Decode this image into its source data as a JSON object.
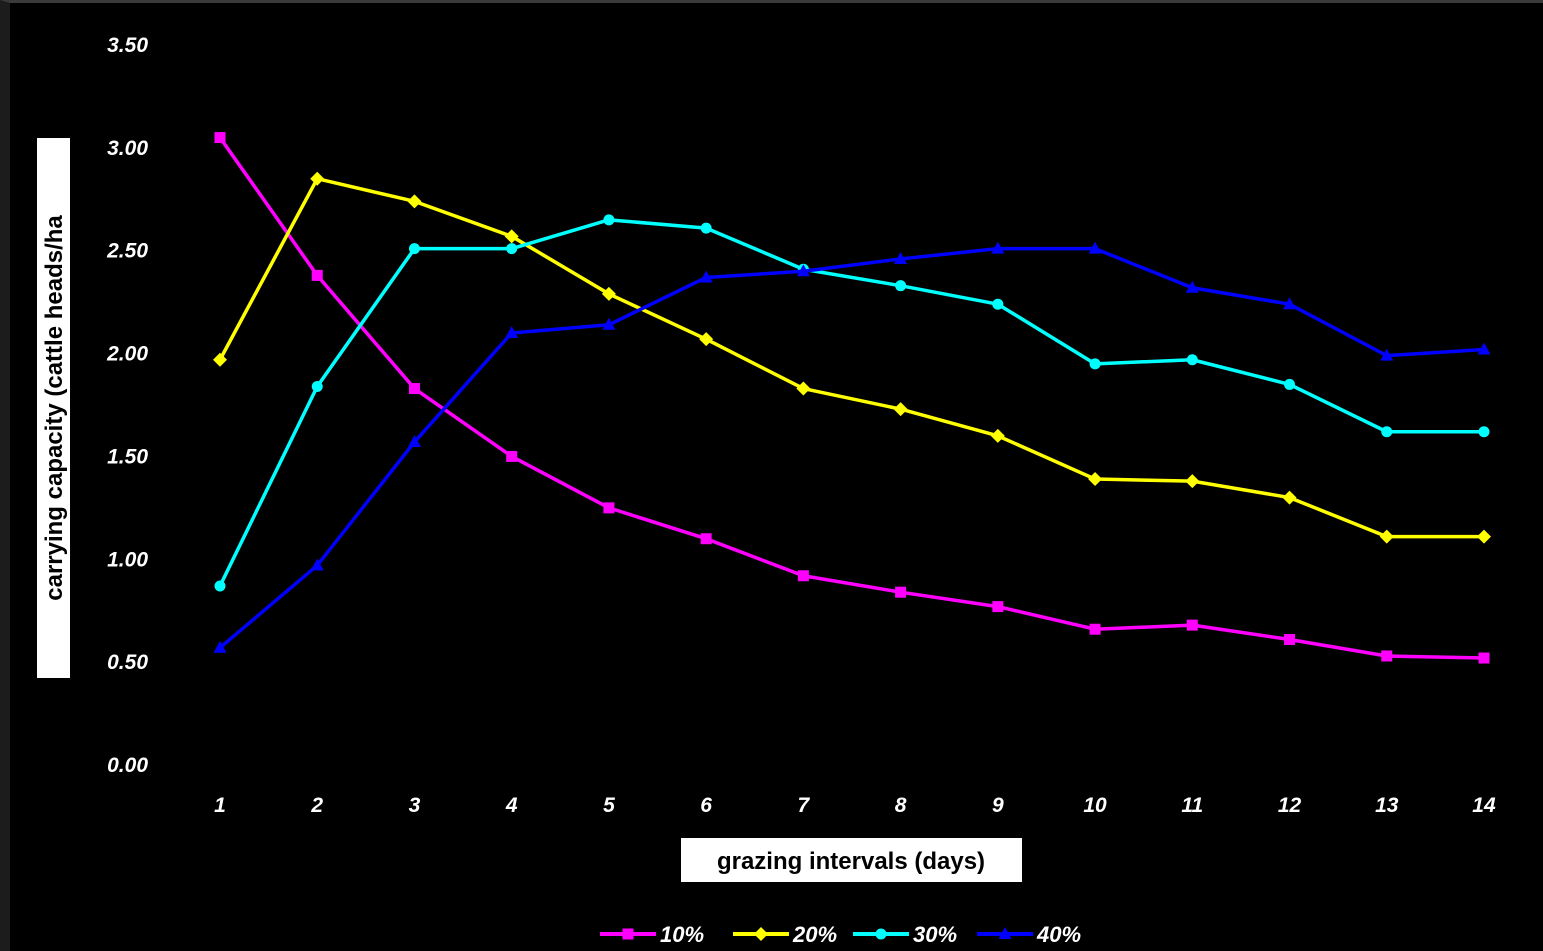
{
  "chart_data": {
    "type": "line",
    "xlabel": "grazing intervals (days)",
    "ylabel": "carrying capacity (cattle heads/ha",
    "categories": [
      "1",
      "2",
      "3",
      "4",
      "5",
      "6",
      "7",
      "8",
      "9",
      "10",
      "11",
      "12",
      "13",
      "14"
    ],
    "ylim": [
      0,
      3.5
    ],
    "yticks": [
      "0.00",
      "0.50",
      "1.00",
      "1.50",
      "2.00",
      "2.50",
      "3.00",
      "3.50"
    ],
    "grid": false,
    "legend_position": "bottom",
    "series": [
      {
        "name": "10%",
        "color": "#ff00ff",
        "marker": "square",
        "values": [
          3.05,
          2.38,
          1.83,
          1.5,
          1.25,
          1.1,
          0.92,
          0.84,
          0.77,
          0.66,
          0.68,
          0.61,
          0.53,
          0.52
        ]
      },
      {
        "name": "20%",
        "color": "#ffff00",
        "marker": "diamond",
        "values": [
          1.97,
          2.85,
          2.74,
          2.57,
          2.29,
          2.07,
          1.83,
          1.73,
          1.6,
          1.39,
          1.38,
          1.3,
          1.11,
          1.11
        ]
      },
      {
        "name": "30%",
        "color": "#00ffff",
        "marker": "circle",
        "values": [
          0.87,
          1.84,
          2.51,
          2.51,
          2.65,
          2.61,
          2.41,
          2.33,
          2.24,
          1.95,
          1.97,
          1.85,
          1.62,
          1.62
        ]
      },
      {
        "name": "40%",
        "color": "#0000ff",
        "marker": "triangle",
        "values": [
          0.57,
          0.97,
          1.57,
          2.1,
          2.14,
          2.37,
          2.4,
          2.46,
          2.51,
          2.51,
          2.32,
          2.24,
          1.99,
          2.02
        ]
      }
    ]
  }
}
